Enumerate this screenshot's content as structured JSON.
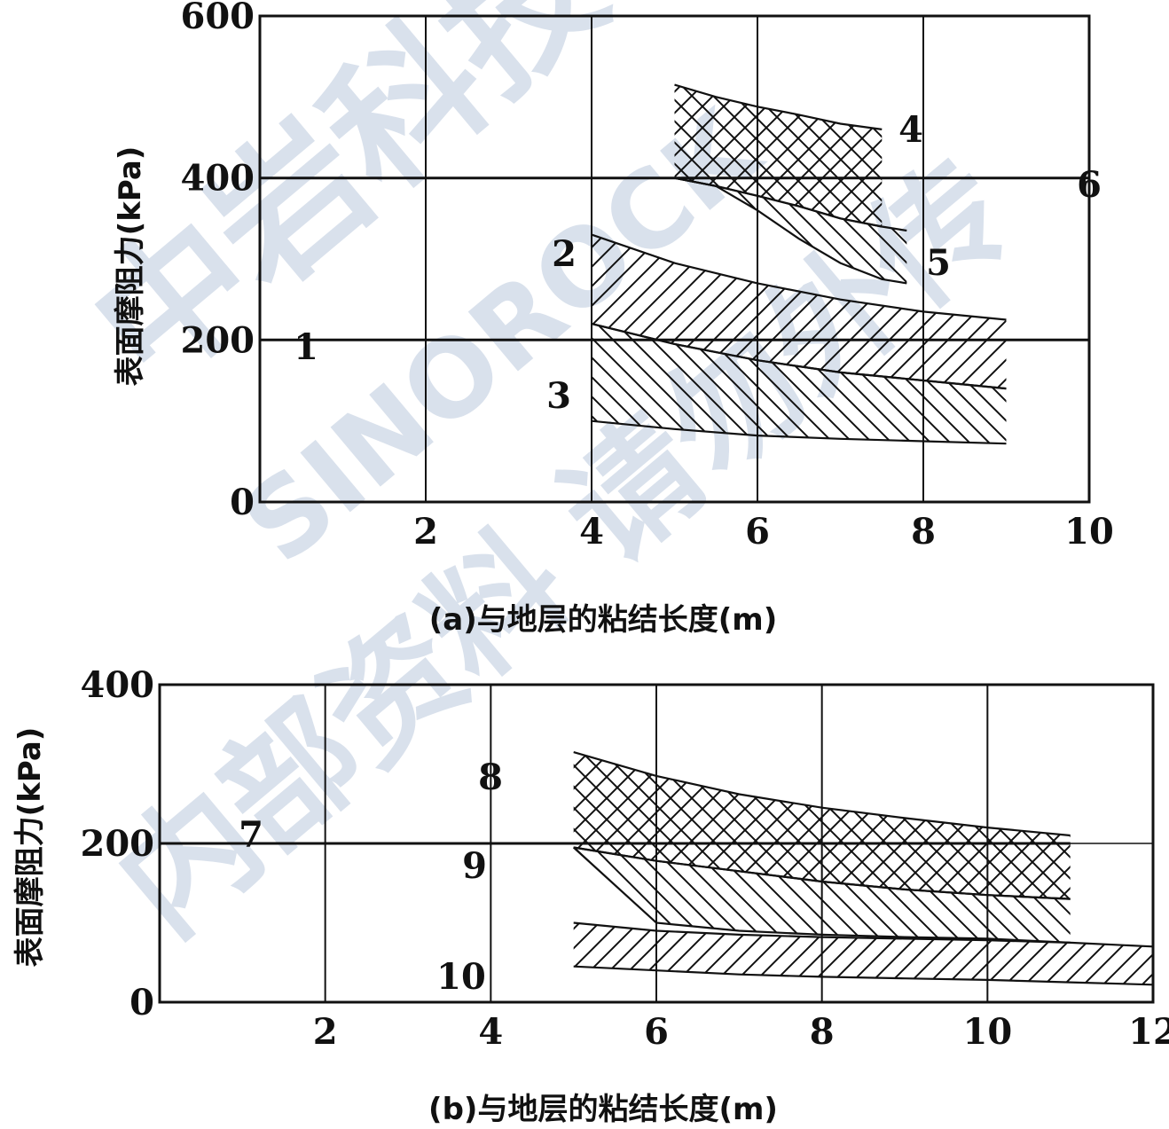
{
  "watermark": {
    "top_text": "中岩科技",
    "latin_text": "SINOROCK",
    "bottom_text": "内部资料 请勿外传",
    "color": "#d3dce9"
  },
  "chart_data": [
    {
      "id": "a",
      "type": "area",
      "xlabel": "(a)与地层的粘结长度(m)",
      "ylabel": "表面摩阻力(kPa)",
      "xlim": [
        0,
        10
      ],
      "ylim": [
        0,
        600
      ],
      "xticks": [
        2,
        4,
        6,
        8,
        10
      ],
      "yticks": [
        0,
        200,
        400,
        600
      ],
      "series": [
        {
          "name": "1",
          "type": "line",
          "x": [
            0,
            10
          ],
          "y": [
            200,
            200
          ]
        },
        {
          "name": "6",
          "type": "line",
          "x": [
            0,
            10
          ],
          "y": [
            400,
            400
          ]
        },
        {
          "name": "4",
          "type": "band",
          "fill": "crosshatch",
          "x": [
            5,
            5.5,
            6,
            6.5,
            7,
            7.5
          ],
          "upper": [
            515,
            500,
            488,
            478,
            467,
            460
          ],
          "lower": [
            400,
            390,
            378,
            365,
            350,
            340
          ]
        },
        {
          "name": "5",
          "type": "band",
          "fill": "backslash",
          "x": [
            5,
            5.5,
            6,
            6.5,
            7,
            7.5,
            7.8
          ],
          "upper": [
            400,
            390,
            378,
            365,
            350,
            340,
            335
          ],
          "lower": [
            400,
            390,
            360,
            325,
            295,
            275,
            270
          ]
        },
        {
          "name": "2",
          "type": "band",
          "fill": "slash",
          "x": [
            4,
            5,
            6,
            7,
            8,
            9
          ],
          "upper": [
            330,
            295,
            270,
            250,
            235,
            225
          ],
          "lower": [
            220,
            195,
            175,
            160,
            150,
            140
          ]
        },
        {
          "name": "3",
          "type": "band",
          "fill": "backslash",
          "x": [
            4,
            5,
            6,
            7,
            8,
            9
          ],
          "upper": [
            220,
            195,
            175,
            160,
            150,
            140
          ],
          "lower": [
            100,
            90,
            82,
            78,
            75,
            72
          ]
        }
      ]
    },
    {
      "id": "b",
      "type": "area",
      "xlabel": "(b)与地层的粘结长度(m)",
      "ylabel": "表面摩阻力(kPa)",
      "xlim": [
        0,
        12
      ],
      "ylim": [
        0,
        400
      ],
      "xticks": [
        2,
        4,
        6,
        8,
        10,
        12
      ],
      "yticks": [
        0,
        200,
        400
      ],
      "series": [
        {
          "name": "7",
          "type": "line",
          "x": [
            0,
            11
          ],
          "y": [
            200,
            200
          ]
        },
        {
          "name": "8",
          "type": "band",
          "fill": "crosshatch",
          "x": [
            5,
            6,
            7,
            8,
            9,
            10,
            11
          ],
          "upper": [
            315,
            285,
            262,
            245,
            232,
            220,
            210
          ],
          "lower": [
            195,
            178,
            165,
            152,
            142,
            135,
            130
          ]
        },
        {
          "name": "9",
          "type": "band",
          "fill": "backslash",
          "x": [
            5,
            6,
            7,
            8,
            9,
            10,
            11
          ],
          "upper": [
            195,
            178,
            165,
            152,
            142,
            135,
            130
          ],
          "lower": [
            195,
            100,
            90,
            85,
            82,
            80,
            75
          ]
        },
        {
          "name": "10",
          "type": "band",
          "fill": "slash",
          "x": [
            5,
            6,
            7,
            8,
            9,
            10,
            11,
            12
          ],
          "upper": [
            100,
            90,
            85,
            82,
            80,
            78,
            75,
            70
          ],
          "lower": [
            45,
            40,
            35,
            32,
            30,
            28,
            25,
            22
          ]
        }
      ]
    }
  ]
}
